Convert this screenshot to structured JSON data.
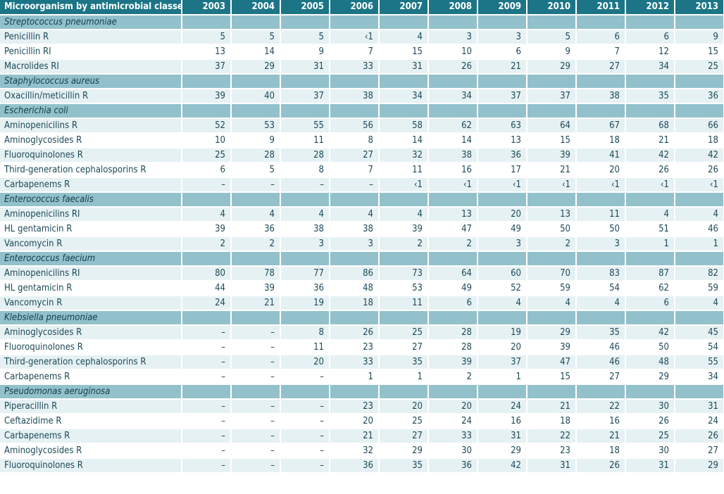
{
  "table": {
    "header_label": "Microorganism by antimicrobial classes",
    "years": [
      "2003",
      "2004",
      "2005",
      "2006",
      "2007",
      "2008",
      "2009",
      "2010",
      "2011",
      "2012",
      "2013"
    ],
    "groups": [
      {
        "organism": "Streptococcus pneumoniae",
        "rows": [
          {
            "label": "Penicillin R",
            "values": [
              "5",
              "5",
              "5",
              "‹1",
              "4",
              "3",
              "3",
              "5",
              "6",
              "6",
              "9"
            ]
          },
          {
            "label": "Penicillin RI",
            "values": [
              "13",
              "14",
              "9",
              "7",
              "15",
              "10",
              "6",
              "9",
              "7",
              "12",
              "15"
            ]
          },
          {
            "label": "Macrolides RI",
            "values": [
              "37",
              "29",
              "31",
              "33",
              "31",
              "26",
              "21",
              "29",
              "27",
              "34",
              "25"
            ]
          }
        ]
      },
      {
        "organism": "Staphylococcus aureus",
        "rows": [
          {
            "label": "Oxacillin/meticillin R",
            "values": [
              "39",
              "40",
              "37",
              "38",
              "34",
              "34",
              "37",
              "37",
              "38",
              "35",
              "36"
            ]
          }
        ]
      },
      {
        "organism": "Escherichia coli",
        "rows": [
          {
            "label": "Aminopenicilins R",
            "values": [
              "52",
              "53",
              "55",
              "56",
              "58",
              "62",
              "63",
              "64",
              "67",
              "68",
              "66"
            ]
          },
          {
            "label": "Aminoglycosides R",
            "values": [
              "10",
              "9",
              "11",
              "8",
              "14",
              "14",
              "13",
              "15",
              "18",
              "21",
              "18"
            ]
          },
          {
            "label": "Fluoroquinolones R",
            "values": [
              "25",
              "28",
              "28",
              "27",
              "32",
              "38",
              "36",
              "39",
              "41",
              "42",
              "42"
            ]
          },
          {
            "label": "Third-generation cephalosporins R",
            "values": [
              "6",
              "5",
              "8",
              "7",
              "11",
              "16",
              "17",
              "21",
              "20",
              "26",
              "26"
            ]
          },
          {
            "label": "Carbapenems R",
            "values": [
              "–",
              "–",
              "–",
              "–",
              "‹1",
              "‹1",
              "‹1",
              "‹1",
              "‹1",
              "‹1",
              "‹1"
            ]
          }
        ]
      },
      {
        "organism": "Enterococcus faecalis",
        "rows": [
          {
            "label": "Aminopenicilins RI",
            "values": [
              "4",
              "4",
              "4",
              "4",
              "4",
              "13",
              "20",
              "13",
              "11",
              "4",
              "4"
            ]
          },
          {
            "label": "HL gentamicin R",
            "values": [
              "39",
              "36",
              "38",
              "38",
              "39",
              "47",
              "49",
              "50",
              "50",
              "51",
              "46"
            ]
          },
          {
            "label": "Vancomycin R",
            "values": [
              "2",
              "2",
              "3",
              "3",
              "2",
              "2",
              "3",
              "2",
              "3",
              "1",
              "1"
            ]
          }
        ]
      },
      {
        "organism": "Enterococcus faecium",
        "rows": [
          {
            "label": "Aminopenicilins RI",
            "values": [
              "80",
              "78",
              "77",
              "86",
              "73",
              "64",
              "60",
              "70",
              "83",
              "87",
              "82"
            ]
          },
          {
            "label": "HL gentamicin R",
            "values": [
              "44",
              "39",
              "36",
              "48",
              "53",
              "49",
              "52",
              "59",
              "54",
              "62",
              "59"
            ]
          },
          {
            "label": "Vancomycin R",
            "values": [
              "24",
              "21",
              "19",
              "18",
              "11",
              "6",
              "4",
              "4",
              "4",
              "6",
              "4"
            ]
          }
        ]
      },
      {
        "organism": "Klebsiella pneumoniae",
        "rows": [
          {
            "label": "Aminoglycosides R",
            "values": [
              "–",
              "–",
              "8",
              "26",
              "25",
              "28",
              "19",
              "29",
              "35",
              "42",
              "45"
            ]
          },
          {
            "label": "Fluoroquinolones R",
            "values": [
              "–",
              "–",
              "11",
              "23",
              "27",
              "28",
              "20",
              "39",
              "46",
              "50",
              "54"
            ]
          },
          {
            "label": "Third-generation cephalosporins R",
            "values": [
              "–",
              "–",
              "20",
              "33",
              "35",
              "39",
              "37",
              "47",
              "46",
              "48",
              "55"
            ]
          },
          {
            "label": "Carbapenems R",
            "values": [
              "–",
              "–",
              "–",
              "1",
              "1",
              "2",
              "1",
              "15",
              "27",
              "29",
              "34"
            ]
          }
        ]
      },
      {
        "organism": "Pseudomonas aeruginosa",
        "rows": [
          {
            "label": "Piperacillin R",
            "values": [
              "–",
              "–",
              "–",
              "23",
              "20",
              "20",
              "24",
              "21",
              "22",
              "30",
              "31"
            ]
          },
          {
            "label": "Ceftazidime R",
            "values": [
              "–",
              "–",
              "–",
              "20",
              "25",
              "24",
              "16",
              "18",
              "16",
              "26",
              "24"
            ]
          },
          {
            "label": "Carbapenems R",
            "values": [
              "–",
              "–",
              "–",
              "21",
              "27",
              "33",
              "31",
              "22",
              "21",
              "25",
              "26"
            ]
          },
          {
            "label": "Aminoglycosides R",
            "values": [
              "–",
              "–",
              "–",
              "32",
              "29",
              "30",
              "29",
              "23",
              "18",
              "30",
              "27"
            ]
          },
          {
            "label": "Fluoroquinolones R",
            "values": [
              "–",
              "–",
              "–",
              "36",
              "35",
              "36",
              "42",
              "31",
              "26",
              "31",
              "29"
            ]
          }
        ]
      }
    ]
  },
  "colors": {
    "header_bg": "#1c7587",
    "group_bg": "#92c1cb",
    "row_alt_bg": "#e6f1f4",
    "text": "#1d4a57"
  }
}
